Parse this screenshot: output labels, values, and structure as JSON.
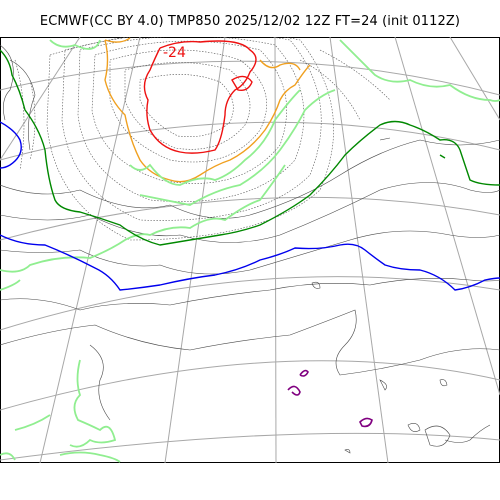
{
  "title": "ECMWF(CC BY 4.0) TMP850 2025/12/02 12Z FT=24 (init 0112Z)",
  "contour_labels": {
    "red": "-24"
  },
  "colors": {
    "red": "#ee1111",
    "orange": "#f0a020",
    "light_green": "#90ee90",
    "green": "#008800",
    "blue": "#0000ee",
    "purple": "#800080",
    "grid": "#a8a8a8",
    "coast": "#4a4a4a"
  }
}
